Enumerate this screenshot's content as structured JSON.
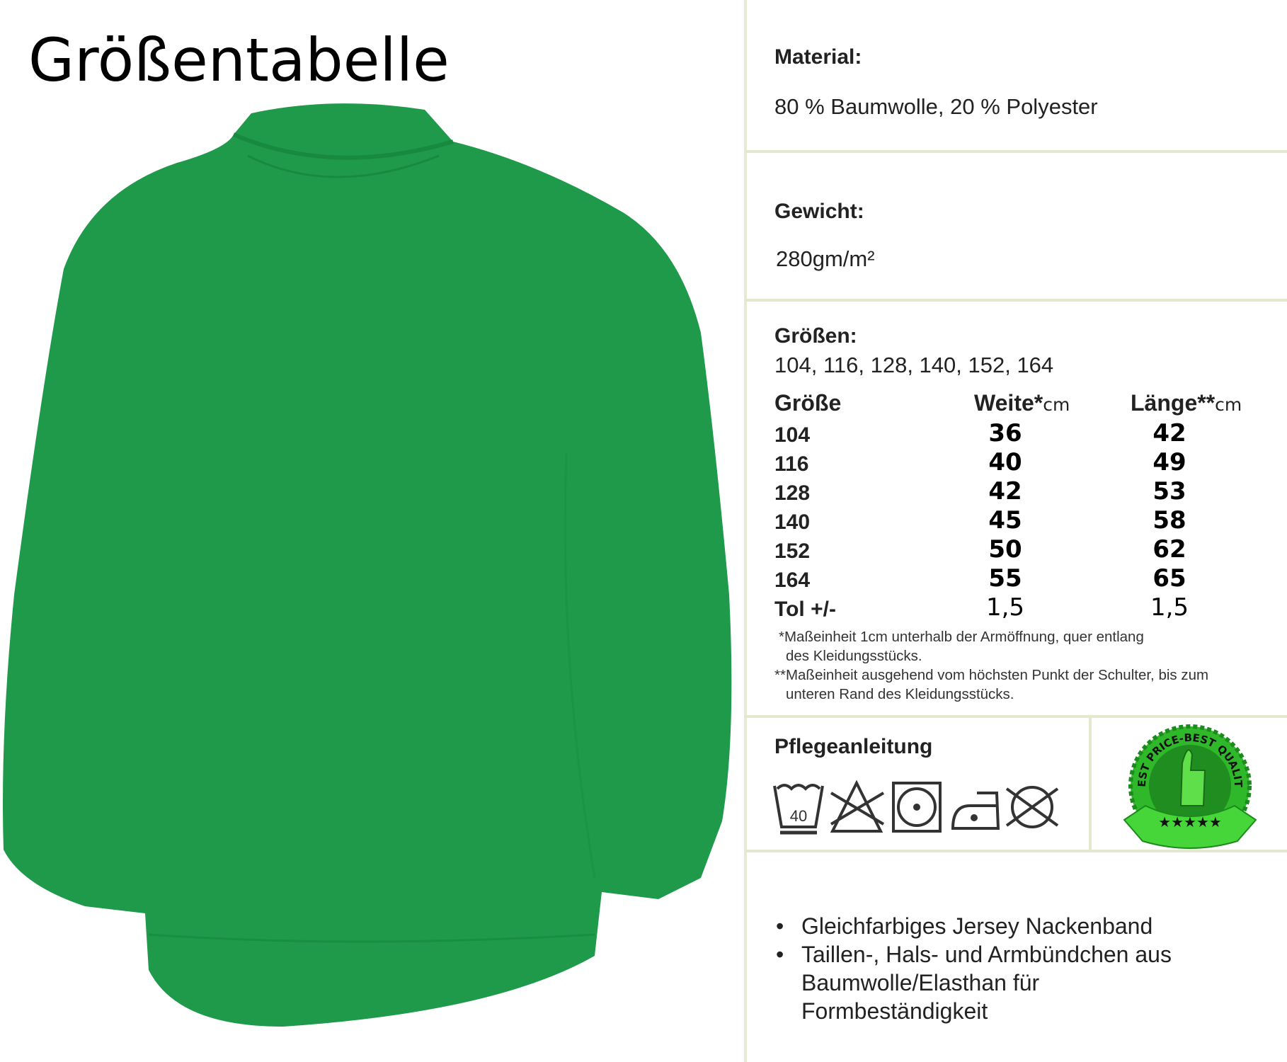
{
  "title": "Größentabelle",
  "product_color": "#1f9a4b",
  "material": {
    "label": "Material:",
    "value": "80 % Baumwolle, 20 % Polyester"
  },
  "weight": {
    "label": "Gewicht:",
    "value": "280gm/m²"
  },
  "sizes": {
    "label": "Größen:",
    "value": "104, 116, 128, 140, 152, 164"
  },
  "table": {
    "headers": [
      {
        "text": "Größe",
        "unit": ""
      },
      {
        "text": "Weite*",
        "unit": "cm"
      },
      {
        "text": "Länge**",
        "unit": "cm"
      }
    ],
    "rows": [
      [
        "104",
        "36",
        "42"
      ],
      [
        "116",
        "40",
        "49"
      ],
      [
        "128",
        "42",
        "53"
      ],
      [
        "140",
        "45",
        "58"
      ],
      [
        "152",
        "50",
        "62"
      ],
      [
        "164",
        "55",
        "65"
      ],
      [
        "Tol +/-",
        "1,5",
        "1,5"
      ]
    ]
  },
  "footnotes": [
    "*Maßeinheit 1cm unterhalb der Armöffnung, quer entlang",
    "des Kleidungsstücks.",
    "**Maßeinheit ausgehend vom höchsten Punkt der Schulter, bis zum",
    "unteren Rand des Kleidungsstücks."
  ],
  "care": {
    "label": "Pflegeanleitung",
    "wash_temp": "40",
    "icons": [
      "wash-40-icon",
      "no-bleach-icon",
      "tumble-dry-icon",
      "iron-low-icon",
      "no-dry-clean-icon"
    ]
  },
  "badge": {
    "text": "BEST PRICE-BEST QUALITY",
    "color": "#3ccf2a"
  },
  "features": [
    "Gleichfarbiges Jersey Nackenband",
    "Taillen-, Hals- und Armbündchen aus Baumwolle/Elasthan für Formbeständigkeit"
  ]
}
